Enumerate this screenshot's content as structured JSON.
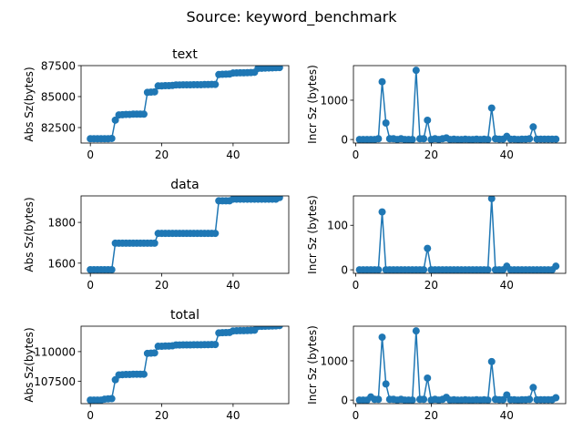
{
  "figure": {
    "suptitle": "Source: keyword_benchmark"
  },
  "style": {
    "series_color": "#1f77b4",
    "axis_color": "#000000",
    "background": "#ffffff"
  },
  "chart_data": [
    {
      "type": "line",
      "title": "text",
      "xlabel": "",
      "ylabel": "Abs Sz(bytes)",
      "xlim": [
        -2.6,
        55.6
      ],
      "ylim": [
        81250,
        87500
      ],
      "xticks": [
        0,
        20,
        40
      ],
      "yticks": [
        82500,
        85000,
        87500
      ],
      "x": [
        0,
        1,
        2,
        3,
        4,
        5,
        6,
        7,
        8,
        9,
        10,
        11,
        12,
        13,
        14,
        15,
        16,
        17,
        18,
        19,
        20,
        21,
        22,
        23,
        24,
        25,
        26,
        27,
        28,
        29,
        30,
        31,
        32,
        33,
        34,
        35,
        36,
        37,
        38,
        39,
        40,
        41,
        42,
        43,
        44,
        45,
        46,
        47,
        48,
        49,
        50,
        51,
        52,
        53
      ],
      "values": [
        81600,
        81600,
        81600,
        81600,
        81600,
        81600,
        81620,
        83100,
        83520,
        83540,
        83560,
        83560,
        83580,
        83580,
        83580,
        83580,
        85340,
        85360,
        85380,
        85860,
        85860,
        85880,
        85880,
        85900,
        85940,
        85940,
        85950,
        85950,
        85950,
        85960,
        85960,
        85960,
        85970,
        85970,
        85980,
        85980,
        86780,
        86800,
        86810,
        86820,
        86900,
        86910,
        86920,
        86920,
        86930,
        86940,
        86960,
        87280,
        87290,
        87300,
        87310,
        87320,
        87330,
        87340
      ]
    },
    {
      "type": "line",
      "title": "",
      "xlabel": "",
      "ylabel": "Incr Sz (bytes)",
      "xlim": [
        -0.6,
        55.6
      ],
      "ylim": [
        -90,
        1880
      ],
      "xticks": [
        0,
        20,
        40
      ],
      "yticks": [
        0,
        1000
      ],
      "x": [
        1,
        2,
        3,
        4,
        5,
        6,
        7,
        8,
        9,
        10,
        11,
        12,
        13,
        14,
        15,
        16,
        17,
        18,
        19,
        20,
        21,
        22,
        23,
        24,
        25,
        26,
        27,
        28,
        29,
        30,
        31,
        32,
        33,
        34,
        35,
        36,
        37,
        38,
        39,
        40,
        41,
        42,
        43,
        44,
        45,
        46,
        47,
        48,
        49,
        50,
        51,
        52,
        53
      ],
      "values": [
        0,
        0,
        0,
        0,
        0,
        20,
        1470,
        420,
        20,
        20,
        0,
        20,
        0,
        0,
        0,
        1760,
        20,
        20,
        490,
        0,
        20,
        0,
        20,
        40,
        0,
        10,
        0,
        0,
        10,
        0,
        0,
        10,
        0,
        10,
        0,
        800,
        20,
        10,
        10,
        80,
        10,
        10,
        0,
        10,
        10,
        20,
        320,
        10,
        10,
        10,
        10,
        10,
        10
      ]
    },
    {
      "type": "line",
      "title": "data",
      "xlabel": "",
      "ylabel": "Abs Sz(bytes)",
      "xlim": [
        -2.6,
        55.6
      ],
      "ylim": [
        1550,
        1930
      ],
      "xticks": [
        0,
        20,
        40
      ],
      "yticks": [
        1600,
        1800
      ],
      "x": [
        0,
        1,
        2,
        3,
        4,
        5,
        6,
        7,
        8,
        9,
        10,
        11,
        12,
        13,
        14,
        15,
        16,
        17,
        18,
        19,
        20,
        21,
        22,
        23,
        24,
        25,
        26,
        27,
        28,
        29,
        30,
        31,
        32,
        33,
        34,
        35,
        36,
        37,
        38,
        39,
        40,
        41,
        42,
        43,
        44,
        45,
        46,
        47,
        48,
        49,
        50,
        51,
        52,
        53
      ],
      "values": [
        1568,
        1568,
        1568,
        1568,
        1568,
        1568,
        1568,
        1698,
        1698,
        1698,
        1698,
        1698,
        1698,
        1698,
        1698,
        1698,
        1698,
        1698,
        1698,
        1746,
        1746,
        1746,
        1746,
        1746,
        1746,
        1746,
        1746,
        1746,
        1746,
        1746,
        1746,
        1746,
        1746,
        1746,
        1746,
        1746,
        1906,
        1906,
        1906,
        1906,
        1914,
        1914,
        1914,
        1914,
        1914,
        1914,
        1914,
        1914,
        1914,
        1914,
        1914,
        1914,
        1914,
        1922
      ]
    },
    {
      "type": "line",
      "title": "",
      "xlabel": "",
      "ylabel": "Incr Sz (bytes)",
      "xlim": [
        -0.6,
        55.6
      ],
      "ylim": [
        -8,
        166
      ],
      "xticks": [
        0,
        20,
        40
      ],
      "yticks": [
        0,
        100
      ],
      "x": [
        1,
        2,
        3,
        4,
        5,
        6,
        7,
        8,
        9,
        10,
        11,
        12,
        13,
        14,
        15,
        16,
        17,
        18,
        19,
        20,
        21,
        22,
        23,
        24,
        25,
        26,
        27,
        28,
        29,
        30,
        31,
        32,
        33,
        34,
        35,
        36,
        37,
        38,
        39,
        40,
        41,
        42,
        43,
        44,
        45,
        46,
        47,
        48,
        49,
        50,
        51,
        52,
        53
      ],
      "values": [
        0,
        0,
        0,
        0,
        0,
        0,
        130,
        0,
        0,
        0,
        0,
        0,
        0,
        0,
        0,
        0,
        0,
        0,
        48,
        0,
        0,
        0,
        0,
        0,
        0,
        0,
        0,
        0,
        0,
        0,
        0,
        0,
        0,
        0,
        0,
        160,
        0,
        0,
        0,
        8,
        0,
        0,
        0,
        0,
        0,
        0,
        0,
        0,
        0,
        0,
        0,
        0,
        8
      ]
    },
    {
      "type": "line",
      "title": "total",
      "xlabel": "",
      "ylabel": "Abs Sz(bytes)",
      "xlim": [
        -2.6,
        55.6
      ],
      "ylim": [
        105600,
        112150
      ],
      "xticks": [
        0,
        20,
        40
      ],
      "yticks": [
        107500,
        110000
      ],
      "x": [
        0,
        1,
        2,
        3,
        4,
        5,
        6,
        7,
        8,
        9,
        10,
        11,
        12,
        13,
        14,
        15,
        16,
        17,
        18,
        19,
        20,
        21,
        22,
        23,
        24,
        25,
        26,
        27,
        28,
        29,
        30,
        31,
        32,
        33,
        34,
        35,
        36,
        37,
        38,
        39,
        40,
        41,
        42,
        43,
        44,
        45,
        46,
        47,
        48,
        49,
        50,
        51,
        52,
        53
      ],
      "values": [
        105900,
        105900,
        105900,
        105900,
        105980,
        106000,
        106020,
        107620,
        108030,
        108050,
        108070,
        108070,
        108090,
        108090,
        108090,
        108090,
        109850,
        109870,
        109890,
        110450,
        110450,
        110470,
        110470,
        110490,
        110560,
        110560,
        110570,
        110570,
        110570,
        110580,
        110580,
        110580,
        110590,
        110590,
        110600,
        110600,
        111580,
        111600,
        111610,
        111620,
        111750,
        111760,
        111770,
        111770,
        111780,
        111790,
        111810,
        112130,
        112140,
        112150,
        112160,
        112170,
        112180,
        112200
      ]
    },
    {
      "type": "line",
      "title": "",
      "xlabel": "",
      "ylabel": "Incr Sz (bytes)",
      "xlim": [
        -0.6,
        55.6
      ],
      "ylim": [
        -90,
        1880
      ],
      "xticks": [
        0,
        20,
        40
      ],
      "yticks": [
        0,
        1000
      ],
      "x": [
        1,
        2,
        3,
        4,
        5,
        6,
        7,
        8,
        9,
        10,
        11,
        12,
        13,
        14,
        15,
        16,
        17,
        18,
        19,
        20,
        21,
        22,
        23,
        24,
        25,
        26,
        27,
        28,
        29,
        30,
        31,
        32,
        33,
        34,
        35,
        36,
        37,
        38,
        39,
        40,
        41,
        42,
        43,
        44,
        45,
        46,
        47,
        48,
        49,
        50,
        51,
        52,
        53
      ],
      "values": [
        0,
        0,
        0,
        80,
        20,
        20,
        1600,
        410,
        20,
        20,
        0,
        20,
        0,
        0,
        0,
        1760,
        20,
        20,
        560,
        0,
        20,
        0,
        20,
        70,
        0,
        10,
        0,
        0,
        10,
        0,
        0,
        10,
        0,
        10,
        0,
        980,
        20,
        10,
        10,
        130,
        10,
        10,
        0,
        10,
        10,
        20,
        320,
        10,
        10,
        10,
        10,
        10,
        60
      ]
    }
  ]
}
